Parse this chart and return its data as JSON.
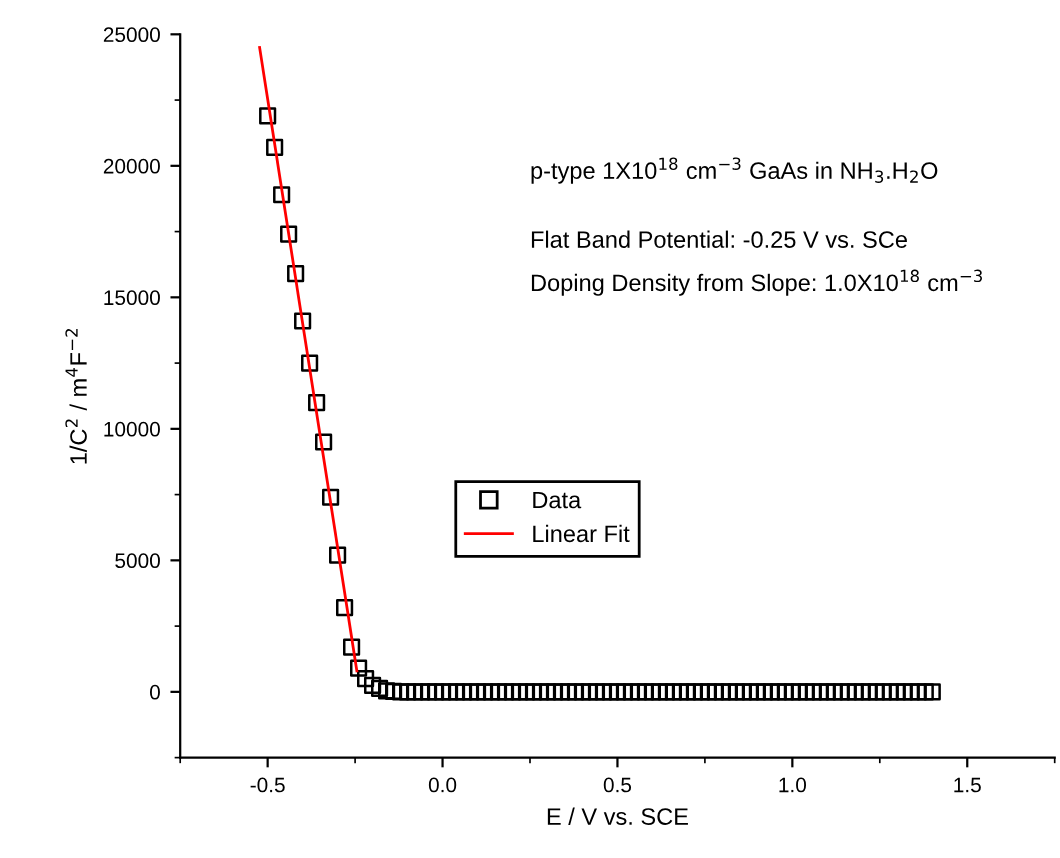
{
  "chart_data": {
    "type": "scatter",
    "xlabel": "E / V vs. SCE",
    "ylabel": "1/C$^{2}$ / m$^{4}$F$^{−2}$",
    "annotations": [
      "p-type 1X10$^{18}$ cm$^{−3}$ GaAs in NH$_{3}$.H$_{2}$O",
      "Flat Band Potential: -0.25 V vs. SCe",
      "Doping Density from Slope: 1.0X10$^{18}$ cm$^{−3}$"
    ],
    "series": [
      {
        "name": "Data",
        "color": "#000000",
        "marker": "square",
        "x": [
          -0.5,
          -0.48,
          -0.46,
          -0.44,
          -0.42,
          -0.4,
          -0.38,
          -0.36,
          -0.34,
          -0.32,
          -0.3,
          -0.28,
          -0.26,
          -0.24,
          -0.22,
          -0.2,
          -0.18,
          -0.16,
          -0.14,
          -0.12,
          -0.1,
          -0.08,
          -0.06,
          -0.04,
          -0.02,
          0,
          0.02,
          0.04,
          0.06,
          0.08,
          0.1,
          0.12,
          0.14,
          0.16,
          0.18,
          0.2,
          0.22,
          0.24,
          0.26,
          0.28,
          0.3,
          0.32,
          0.34,
          0.36,
          0.38,
          0.4,
          0.42,
          0.44,
          0.46,
          0.48,
          0.5,
          0.52,
          0.54,
          0.56,
          0.58,
          0.6,
          0.62,
          0.64,
          0.66,
          0.68,
          0.7,
          0.72,
          0.74,
          0.76,
          0.78,
          0.8,
          0.82,
          0.84,
          0.86,
          0.88,
          0.9,
          0.92,
          0.94,
          0.96,
          0.98,
          1.0,
          1.02,
          1.04,
          1.06,
          1.08,
          1.1,
          1.12,
          1.14,
          1.16,
          1.18,
          1.2,
          1.22,
          1.24,
          1.26,
          1.28,
          1.3,
          1.32,
          1.34,
          1.36,
          1.38,
          1.4
        ],
        "values": [
          21900,
          20700,
          18900,
          17400,
          15900,
          14100,
          12500,
          11000,
          9500,
          7400,
          5200,
          3200,
          1700,
          900,
          500,
          250,
          130,
          40,
          20,
          0,
          0,
          0,
          0,
          0,
          0,
          0,
          0,
          0,
          0,
          0,
          0,
          0,
          0,
          0,
          0,
          0,
          0,
          0,
          0,
          0,
          0,
          0,
          0,
          0,
          0,
          0,
          0,
          0,
          0,
          0,
          0,
          0,
          0,
          0,
          0,
          0,
          0,
          0,
          0,
          0,
          0,
          0,
          0,
          0,
          0,
          0,
          0,
          0,
          0,
          0,
          0,
          0,
          0,
          0,
          0,
          0,
          0,
          0,
          0,
          0,
          0,
          0,
          0,
          0,
          0,
          0,
          0,
          0,
          0,
          0,
          0,
          0,
          0,
          0,
          0,
          0
        ]
      },
      {
        "name": "Linear Fit",
        "type": "line",
        "color": "#ff0000",
        "marker": "none",
        "line_style": "solid",
        "x": [
          -0.523,
          -0.245
        ],
        "values": [
          24500,
          800
        ]
      }
    ],
    "xlim": [
      -0.75,
      1.75
    ],
    "xticks": [
      {
        "value": -0.5,
        "label": "-0.5"
      },
      {
        "value": 0.0,
        "label": "0.0"
      },
      {
        "value": 0.5,
        "label": "0.5"
      },
      {
        "value": 1.0,
        "label": "1.0"
      },
      {
        "value": 1.5,
        "label": "1.5"
      }
    ],
    "ylim": [
      -2500,
      25000
    ],
    "yticks": [
      0,
      5000,
      10000,
      15000,
      20000,
      25000
    ],
    "grid": false,
    "legend": "center"
  }
}
